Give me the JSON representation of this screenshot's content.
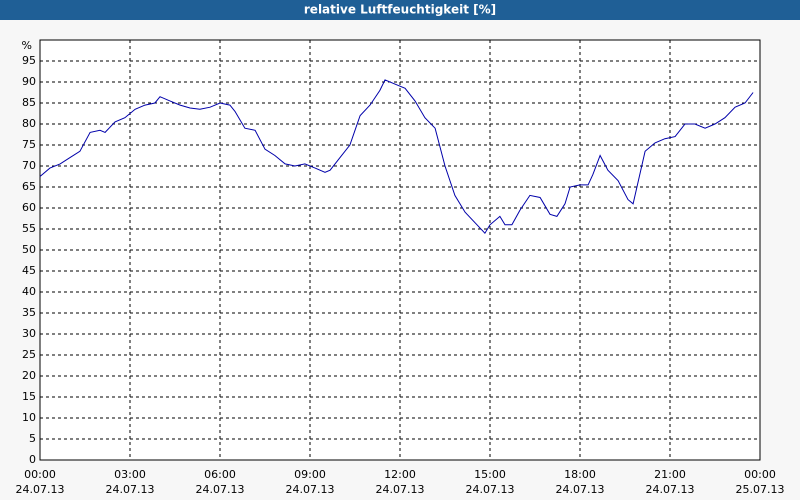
{
  "chart_data": {
    "type": "line",
    "title": "relative Luftfeuchtigkeit [%]",
    "y_unit": "%",
    "x": [
      0,
      0.33,
      0.67,
      1,
      1.33,
      1.67,
      2,
      2.17,
      2.5,
      2.83,
      3.17,
      3.5,
      3.83,
      4,
      4.33,
      4.67,
      5,
      5.33,
      5.67,
      6,
      6.33,
      6.5,
      6.83,
      7.17,
      7.5,
      7.83,
      8.17,
      8.5,
      8.83,
      9.17,
      9.5,
      9.67,
      10,
      10.33,
      10.67,
      11,
      11.33,
      11.5,
      11.83,
      12.17,
      12.5,
      12.83,
      13.17,
      13.5,
      13.83,
      14.17,
      14.5,
      14.83,
      15,
      15.33,
      15.5,
      15.73,
      16,
      16.33,
      16.67,
      17,
      17.23,
      17.5,
      17.67,
      18,
      18.27,
      18.43,
      18.67,
      18.93,
      19.27,
      19.6,
      19.77,
      20.17,
      20.5,
      20.83,
      21.17,
      21.5,
      21.83,
      22.17,
      22.5,
      22.83,
      23.17,
      23.5,
      23.77
    ],
    "series": [
      {
        "color": "#0000aa",
        "values": [
          67.5,
          69.5,
          70.5,
          72,
          73.5,
          78,
          78.5,
          78,
          80.5,
          81.5,
          83.5,
          84.5,
          85,
          86.5,
          85.5,
          84.5,
          83.8,
          83.5,
          84,
          85,
          84.5,
          83,
          79,
          78.5,
          74,
          72.5,
          70.5,
          70,
          70.5,
          69.5,
          68.5,
          69,
          72,
          75,
          82,
          84.5,
          88,
          90.5,
          89.5,
          88.5,
          85.5,
          81.5,
          79,
          70,
          63,
          59,
          56.5,
          54,
          56,
          58,
          56,
          56,
          59.5,
          63,
          62.5,
          58.5,
          58,
          61,
          65,
          65.5,
          65.5,
          68,
          72.5,
          69,
          66.5,
          62,
          61,
          73.5,
          75.5,
          76.5,
          77,
          80,
          80,
          79,
          80,
          81.5,
          84,
          85,
          87.5
        ]
      }
    ],
    "xlim": [
      0,
      24
    ],
    "xticks": [
      {
        "value": 0,
        "label": "00:00",
        "date": "24.07.13"
      },
      {
        "value": 3,
        "label": "03:00",
        "date": "24.07.13"
      },
      {
        "value": 6,
        "label": "06:00",
        "date": "24.07.13"
      },
      {
        "value": 9,
        "label": "09:00",
        "date": "24.07.13"
      },
      {
        "value": 12,
        "label": "12:00",
        "date": "24.07.13"
      },
      {
        "value": 15,
        "label": "15:00",
        "date": "24.07.13"
      },
      {
        "value": 18,
        "label": "18:00",
        "date": "24.07.13"
      },
      {
        "value": 21,
        "label": "21:00",
        "date": "24.07.13"
      },
      {
        "value": 24,
        "label": "00:00",
        "date": "25.07.13"
      }
    ],
    "ylim": [
      0,
      100
    ],
    "yticks": [
      0,
      5,
      10,
      15,
      20,
      25,
      30,
      35,
      40,
      45,
      50,
      55,
      60,
      65,
      70,
      75,
      80,
      85,
      90,
      95
    ],
    "grid": true
  }
}
